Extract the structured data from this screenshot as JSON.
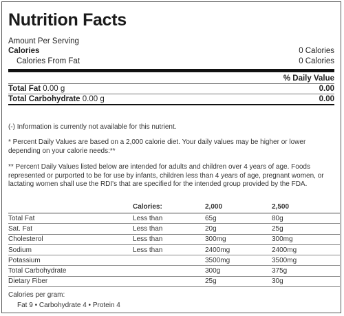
{
  "title": "Nutrition Facts",
  "amount_per_serving": "Amount Per Serving",
  "calories": {
    "label": "Calories",
    "value": "0 Calories"
  },
  "calories_from_fat": {
    "label": "Calories From Fat",
    "value": "0 Calories"
  },
  "daily_value_header": "% Daily Value",
  "nutrients": [
    {
      "label": "Total Fat",
      "amount": "0.00 g",
      "dv": "0.00"
    },
    {
      "label": "Total Carbohydrate",
      "amount": "0.00 g",
      "dv": "0.00"
    }
  ],
  "notes": {
    "unavailable": "(-) Information is currently not available for this nutrient.",
    "percent_dv": "* Percent Daily Values are based on a 2,000 calorie diet. Your daily values may be higher or lower depending on your calorie needs:**",
    "intended": "** Percent Daily Values listed below are intended for adults and children over 4 years of age. Foods represented or purported to be for use by infants, children less than 4 years of age, pregnant women, or lactating women shall use the RDI's that are specified for the intended group provided by the FDA."
  },
  "dv_table": {
    "headers": [
      "",
      "Calories:",
      "2,000",
      "2,500"
    ],
    "rows": [
      [
        "Total Fat",
        "Less than",
        "65g",
        "80g"
      ],
      [
        "Sat. Fat",
        "Less than",
        "20g",
        "25g"
      ],
      [
        "Cholesterol",
        "Less than",
        "300mg",
        "300mg"
      ],
      [
        "Sodium",
        "Less than",
        "2400mg",
        "2400mg"
      ],
      [
        "Potassium",
        "",
        "3500mg",
        "3500mg"
      ],
      [
        "Total Carbohydrate",
        "",
        "300g",
        "375g"
      ],
      [
        "Dietary Fiber",
        "",
        "25g",
        "30g"
      ]
    ]
  },
  "calories_per_gram": {
    "label": "Calories per gram:",
    "values": "Fat 9 • Carbohydrate 4 • Protein 4"
  }
}
